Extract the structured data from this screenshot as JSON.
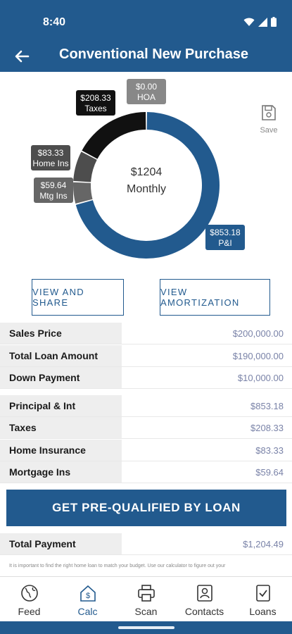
{
  "status": {
    "time": "8:40"
  },
  "header": {
    "title": "Conventional New Purchase"
  },
  "chart_data": {
    "type": "donut",
    "center_amount": "$1204",
    "center_label": "Monthly",
    "total": 1204.49,
    "segments": [
      {
        "name": "P&I",
        "label": "$853.18",
        "value": 853.18,
        "color": "#225a8e"
      },
      {
        "name": "Mtg Ins",
        "label": "$59.64",
        "value": 59.64,
        "color": "#666666"
      },
      {
        "name": "Home Ins",
        "label": "$83.33",
        "value": 83.33,
        "color": "#4d4d4d"
      },
      {
        "name": "Taxes",
        "label": "$208.33",
        "value": 208.33,
        "color": "#111111"
      },
      {
        "name": "HOA",
        "label": "$0.00",
        "value": 0.0,
        "color": "#888888"
      }
    ]
  },
  "save": {
    "label": "Save"
  },
  "buttons": {
    "view_share": "VIEW AND SHARE",
    "view_amortization": "VIEW AMORTIZATION",
    "prequalify": "GET PRE-QUALIFIED BY LOAN"
  },
  "loan_rows": [
    {
      "label": "Sales Price",
      "value": "$200,000.00"
    },
    {
      "label": "Total Loan Amount",
      "value": "$190,000.00"
    },
    {
      "label": "Down Payment",
      "value": "$10,000.00"
    }
  ],
  "payment_rows": [
    {
      "label": "Principal & Int",
      "value": "$853.18"
    },
    {
      "label": "Taxes",
      "value": "$208.33"
    },
    {
      "label": "Home Insurance",
      "value": "$83.33"
    },
    {
      "label": "Mortgage Ins",
      "value": "$59.64"
    }
  ],
  "total_row": {
    "label": "Total Payment",
    "value": "$1,204.49"
  },
  "disclaimer": "It is important to find the right home loan to match your budget. Use our calculator to figure out your",
  "nav": [
    {
      "label": "Feed",
      "icon": "globe-icon"
    },
    {
      "label": "Calc",
      "icon": "calculator-icon"
    },
    {
      "label": "Scan",
      "icon": "printer-icon"
    },
    {
      "label": "Contacts",
      "icon": "contacts-icon"
    },
    {
      "label": "Loans",
      "icon": "document-check-icon"
    }
  ]
}
